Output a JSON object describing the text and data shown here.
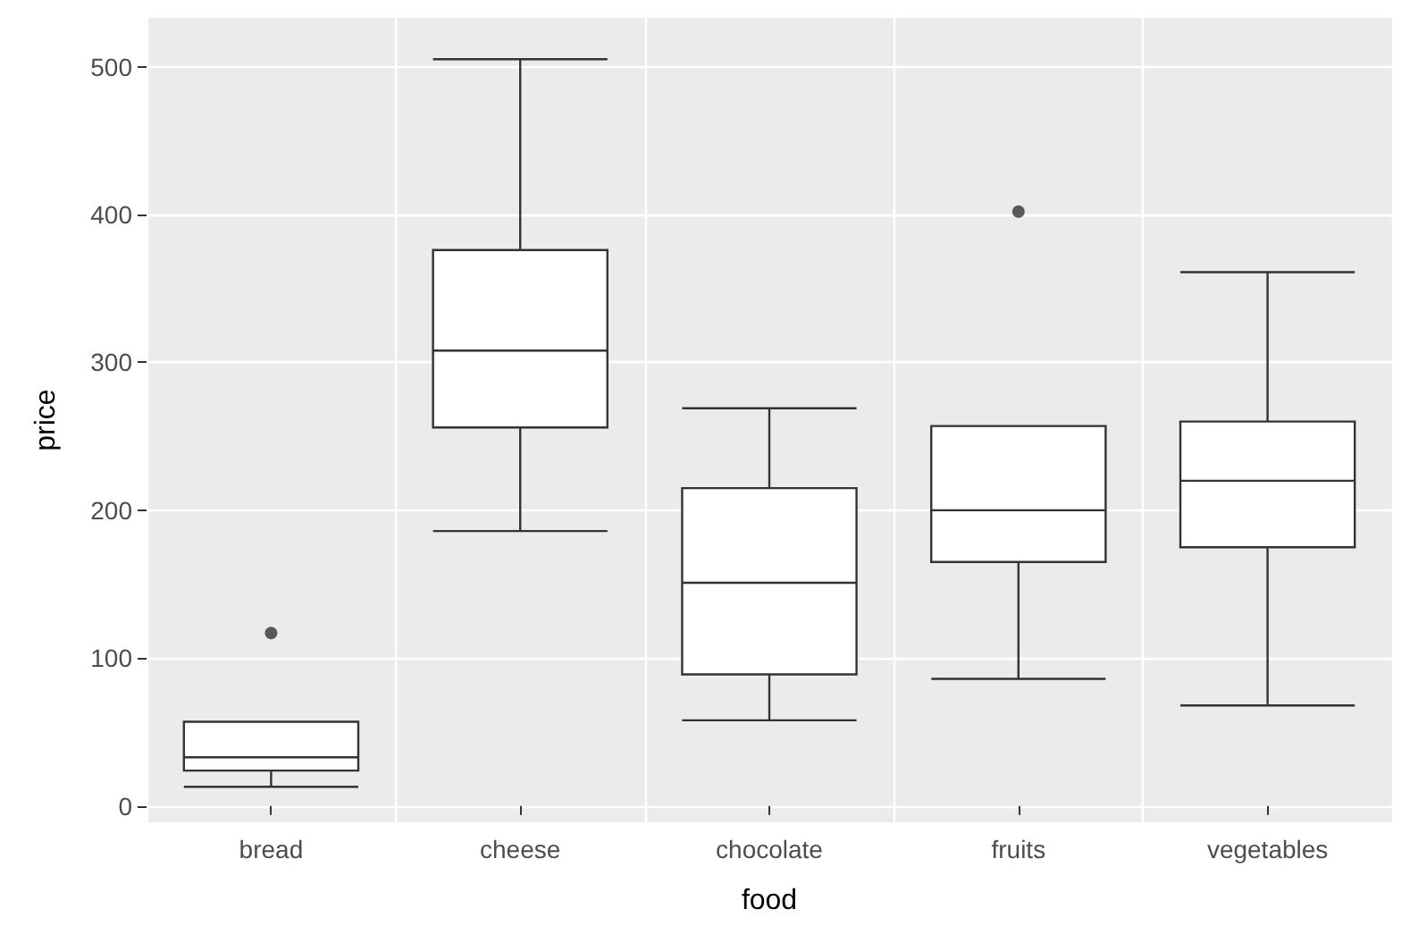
{
  "chart_data": {
    "type": "box",
    "xlabel": "food",
    "ylabel": "price",
    "categories": [
      "bread",
      "cheese",
      "chocolate",
      "fruits",
      "vegetables"
    ],
    "boxes": [
      {
        "low": 13,
        "q1": 24,
        "median": 33,
        "q3": 57,
        "high": 57,
        "outliers": [
          117
        ]
      },
      {
        "low": 186,
        "q1": 256,
        "median": 308,
        "q3": 376,
        "high": 505
      },
      {
        "low": 58,
        "q1": 89,
        "median": 151,
        "q3": 215,
        "high": 269
      },
      {
        "low": 86,
        "q1": 165,
        "median": 200,
        "q3": 257,
        "high": 257,
        "outliers": [
          402
        ]
      },
      {
        "low": 68,
        "q1": 175,
        "median": 220,
        "q3": 260,
        "high": 361
      }
    ],
    "ylim": [
      -11,
      533
    ],
    "yticks": [
      0,
      100,
      200,
      300,
      400,
      500
    ],
    "grid": true
  }
}
